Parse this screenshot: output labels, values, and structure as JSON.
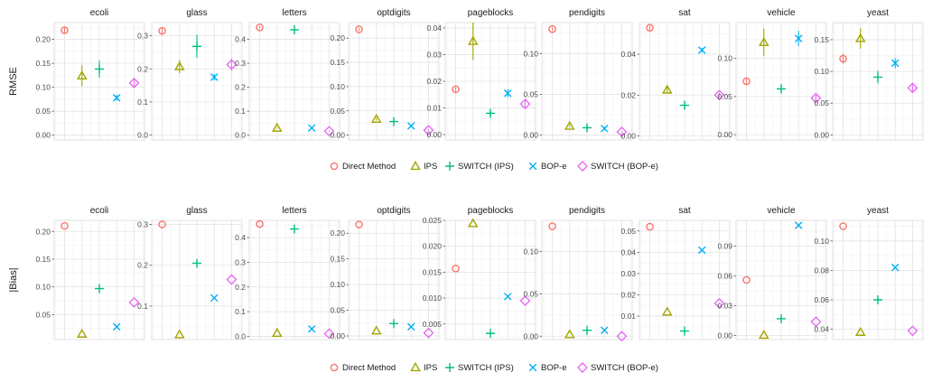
{
  "colors": {
    "Direct Method": "#F8766D",
    "IPS": "#A3A500",
    "SWITCH (IPS)": "#00BF7D",
    "BOP-e": "#00B0F6",
    "SWITCH (BOP-e)": "#E76BF3"
  },
  "chart_data": [
    {
      "type": "scatter",
      "ylabel": "RMSE",
      "grid": true,
      "legend_position": "bottom",
      "legend": [
        "Direct Method",
        "IPS",
        "SWITCH (IPS)",
        "BOP-e",
        "SWITCH (BOP-e)"
      ],
      "panels": [
        {
          "title": "ecoli",
          "ylim": [
            -0.01,
            0.235
          ],
          "ticks": [
            0.0,
            0.05,
            0.1,
            0.15,
            0.2
          ],
          "tick_labels": [
            "0.00",
            "0.05",
            "0.10",
            "0.15",
            "0.20"
          ],
          "values": [
            0.219,
            0.124,
            0.138,
            0.078,
            0.109
          ],
          "err": [
            0.007,
            0.022,
            0.018,
            0.006,
            0.008
          ]
        },
        {
          "title": "glass",
          "ylim": [
            -0.015,
            0.34
          ],
          "ticks": [
            0.0,
            0.1,
            0.2,
            0.3
          ],
          "tick_labels": [
            "0.0",
            "0.1",
            "0.2",
            "0.3"
          ],
          "values": [
            0.315,
            0.207,
            0.268,
            0.175,
            0.213
          ],
          "err": [
            0.01,
            0.02,
            0.035,
            0.01,
            0.018
          ]
        },
        {
          "title": "letters",
          "ylim": [
            -0.02,
            0.47
          ],
          "ticks": [
            0.0,
            0.1,
            0.2,
            0.3,
            0.4
          ],
          "tick_labels": [
            "0.0",
            "0.1",
            "0.2",
            "0.3",
            "0.4"
          ],
          "values": [
            0.45,
            0.03,
            0.44,
            0.03,
            0.017
          ],
          "err": [
            0.005,
            0.003,
            0.01,
            0.003,
            0.002
          ]
        },
        {
          "title": "optdigits",
          "ylim": [
            -0.01,
            0.232
          ],
          "ticks": [
            0.0,
            0.05,
            0.1,
            0.15,
            0.2
          ],
          "tick_labels": [
            "0.00",
            "0.05",
            "0.10",
            "0.15",
            "0.20"
          ],
          "values": [
            0.218,
            0.033,
            0.028,
            0.019,
            0.01
          ],
          "err": [
            0.003,
            0.003,
            0.003,
            0.002,
            0.002
          ]
        },
        {
          "title": "pageblocks",
          "ylim": [
            -0.002,
            0.042
          ],
          "ticks": [
            0.0,
            0.01,
            0.02,
            0.03,
            0.04
          ],
          "tick_labels": [
            "0.00",
            "0.01",
            "0.02",
            "0.03",
            "0.04"
          ],
          "values": [
            0.017,
            0.035,
            0.008,
            0.0155,
            0.0115
          ],
          "err": [
            0.0008,
            0.007,
            0.001,
            0.0015,
            0.0012
          ]
        },
        {
          "title": "pendigits",
          "ylim": [
            -0.006,
            0.138
          ],
          "ticks": [
            0.0,
            0.05,
            0.1
          ],
          "tick_labels": [
            "0.00",
            "0.05",
            "0.10"
          ],
          "values": [
            0.13,
            0.011,
            0.009,
            0.008,
            0.004
          ],
          "err": [
            0.002,
            0.002,
            0.002,
            0.002,
            0.001
          ]
        },
        {
          "title": "sat",
          "ylim": [
            -0.002,
            0.0555
          ],
          "ticks": [
            0.0,
            0.02,
            0.04
          ],
          "tick_labels": [
            "0.00",
            "0.02",
            "0.04"
          ],
          "values": [
            0.053,
            0.0225,
            0.015,
            0.042,
            0.02
          ],
          "err": [
            0.001,
            0.0015,
            0.002,
            0.001,
            0.0012
          ]
        },
        {
          "title": "vehicle",
          "ylim": [
            -0.007,
            0.147
          ],
          "ticks": [
            0.0,
            0.05,
            0.1
          ],
          "tick_labels": [
            "0.00",
            "0.05",
            "0.10"
          ],
          "values": [
            0.07,
            0.121,
            0.06,
            0.126,
            0.048
          ],
          "err": [
            0.005,
            0.018,
            0.006,
            0.01,
            0.004
          ]
        },
        {
          "title": "yeast",
          "ylim": [
            -0.008,
            0.177
          ],
          "ticks": [
            0.0,
            0.05,
            0.1,
            0.15
          ],
          "tick_labels": [
            "0.00",
            "0.05",
            "0.10",
            "0.15"
          ],
          "values": [
            0.12,
            0.152,
            0.091,
            0.113,
            0.074
          ],
          "err": [
            0.008,
            0.016,
            0.01,
            0.008,
            0.008
          ]
        }
      ]
    },
    {
      "type": "scatter",
      "ylabel": "|Bias|",
      "grid": true,
      "legend_position": "bottom",
      "legend": [
        "Direct Method",
        "IPS",
        "SWITCH (IPS)",
        "BOP-e",
        "SWITCH (BOP-e)"
      ],
      "panels": [
        {
          "title": "ecoli",
          "ylim": [
            0.005,
            0.22
          ],
          "ticks": [
            0.05,
            0.1,
            0.15,
            0.2
          ],
          "tick_labels": [
            "0.05",
            "0.10",
            "0.15",
            "0.20"
          ],
          "values": [
            0.21,
            0.015,
            0.097,
            0.028,
            0.072
          ]
        },
        {
          "title": "glass",
          "ylim": [
            0.018,
            0.31
          ],
          "ticks": [
            0.1,
            0.2,
            0.3
          ],
          "tick_labels": [
            "0.1",
            "0.2",
            "0.3"
          ],
          "values": [
            0.3,
            0.03,
            0.205,
            0.12,
            0.165
          ]
        },
        {
          "title": "letters",
          "ylim": [
            -0.013,
            0.47
          ],
          "ticks": [
            0.0,
            0.1,
            0.2,
            0.3,
            0.4
          ],
          "tick_labels": [
            "0.0",
            "0.1",
            "0.2",
            "0.3",
            "0.4"
          ],
          "values": [
            0.455,
            0.013,
            0.435,
            0.03,
            0.011
          ]
        },
        {
          "title": "optdigits",
          "ylim": [
            -0.007,
            0.225
          ],
          "ticks": [
            0.0,
            0.05,
            0.1,
            0.15,
            0.2
          ],
          "tick_labels": [
            "0.00",
            "0.05",
            "0.10",
            "0.15",
            "0.20"
          ],
          "values": [
            0.217,
            0.01,
            0.024,
            0.018,
            0.006
          ]
        },
        {
          "title": "pageblocks",
          "ylim": [
            0.002,
            0.025
          ],
          "ticks": [
            0.005,
            0.01,
            0.015,
            0.02,
            0.025
          ],
          "tick_labels": [
            "0.005",
            "0.010",
            "0.015",
            "0.020",
            "0.025"
          ],
          "values": [
            0.0157,
            0.0244,
            0.0032,
            0.0103,
            0.0095
          ]
        },
        {
          "title": "pendigits",
          "ylim": [
            -0.004,
            0.137
          ],
          "ticks": [
            0.0,
            0.05,
            0.1
          ],
          "tick_labels": [
            "0.00",
            "0.05",
            "0.10"
          ],
          "values": [
            0.13,
            0.002,
            0.007,
            0.007,
            0.0
          ]
        },
        {
          "title": "sat",
          "ylim": [
            -0.001,
            0.055
          ],
          "ticks": [
            0.01,
            0.02,
            0.03,
            0.04,
            0.05
          ],
          "tick_labels": [
            "0.01",
            "0.02",
            "0.03",
            "0.04",
            "0.05"
          ],
          "values": [
            0.052,
            0.012,
            0.003,
            0.041,
            0.016
          ]
        },
        {
          "title": "vehicle",
          "ylim": [
            -0.004,
            0.116
          ],
          "ticks": [
            0.0,
            0.03,
            0.06,
            0.09
          ],
          "tick_labels": [
            "0.00",
            "0.03",
            "0.06",
            "0.09"
          ],
          "values": [
            0.056,
            0.0005,
            0.017,
            0.111,
            0.014
          ]
        },
        {
          "title": "yeast",
          "ylim": [
            0.033,
            0.114
          ],
          "ticks": [
            0.04,
            0.06,
            0.08,
            0.1
          ],
          "tick_labels": [
            "0.04",
            "0.06",
            "0.08",
            "0.10"
          ],
          "values": [
            0.11,
            0.038,
            0.06,
            0.082,
            0.039
          ]
        }
      ]
    }
  ]
}
